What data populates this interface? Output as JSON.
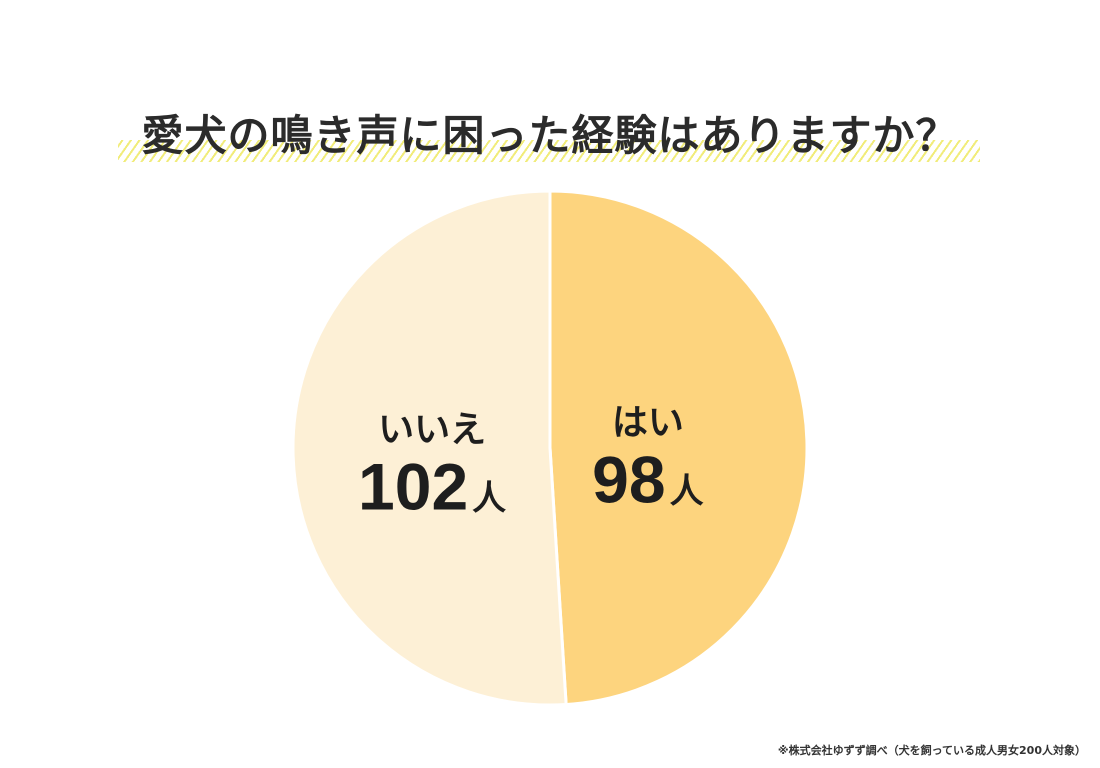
{
  "chart_data": {
    "type": "pie",
    "title": "愛犬の鳴き声に困った経験はありますか？",
    "slices": [
      {
        "label": "はい",
        "value": 98,
        "unit": "人",
        "color": "#fdd47e"
      },
      {
        "label": "いいえ",
        "value": 102,
        "unit": "人",
        "color": "#fdf0d6"
      }
    ],
    "separator_color": "#ffffff"
  },
  "footnote": "※株式会社ゆずず調べ（犬を飼っている成人男女200人対象）"
}
